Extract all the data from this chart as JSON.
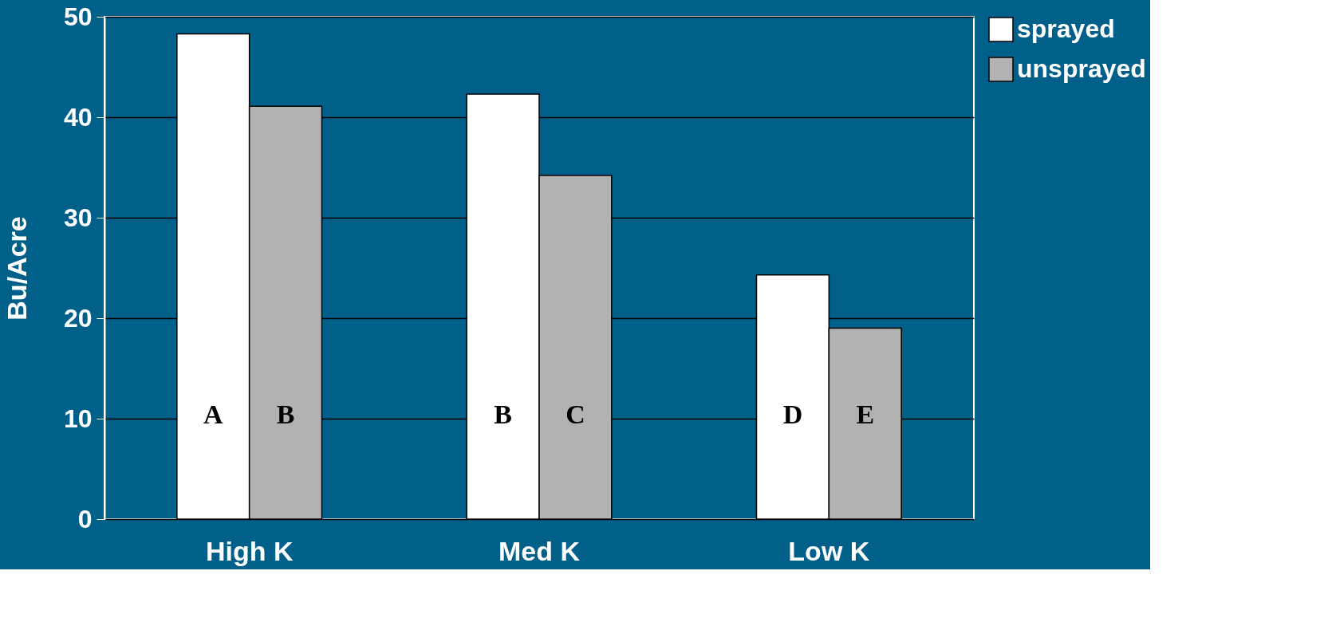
{
  "chart_data": {
    "type": "bar",
    "ylabel": "Bu/Acre",
    "categories": [
      "High K",
      "Med K",
      "Low K"
    ],
    "series": [
      {
        "name": "sprayed",
        "color": "#ffffff",
        "values": [
          48.3,
          42.3,
          24.3
        ],
        "value_labels": [
          "A",
          "B",
          "D"
        ]
      },
      {
        "name": "unsprayed",
        "color": "#b2b2b2",
        "values": [
          41.1,
          34.2,
          19.0
        ],
        "value_labels": [
          "B",
          "C",
          "E"
        ]
      }
    ],
    "ylim": [
      0,
      50
    ],
    "yticks": [
      0,
      10,
      20,
      30,
      40,
      50
    ],
    "grid": "y",
    "legend": "right"
  }
}
